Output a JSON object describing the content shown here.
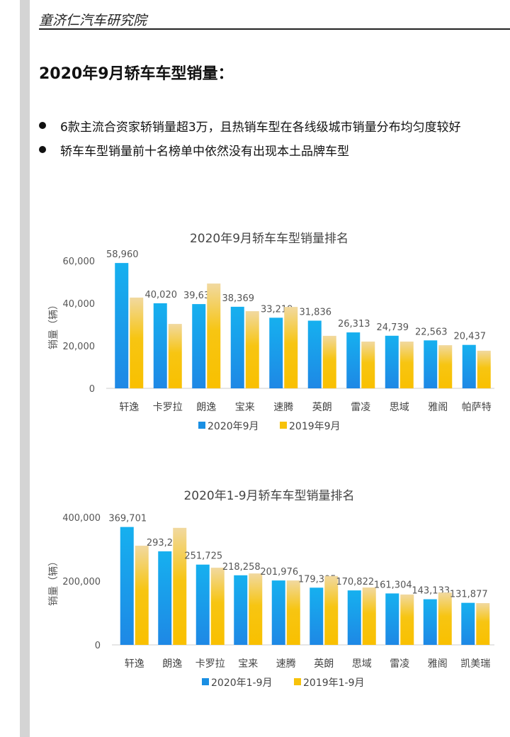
{
  "header": {
    "org": "童济仁汽车研究院"
  },
  "page_title": "2020年9月轿车车型销量：",
  "bullets": [
    "6款主流合资家轿销量超3万，且热销车型在各线级城市销量分布均匀度较好",
    "轿车车型销量前十名榜单中依然没有出现本土品牌车型"
  ],
  "colors": {
    "blue": "#1a8fe3",
    "yellow": "#f7c20a"
  },
  "chart_data": [
    {
      "type": "bar",
      "title": "2020年9月轿车车型销量排名",
      "ylabel": "销量（辆）",
      "ylim": [
        0,
        60000
      ],
      "yticks": [
        "0",
        "20,000",
        "40,000",
        "60,000"
      ],
      "categories": [
        "轩逸",
        "卡罗拉",
        "朗逸",
        "宝来",
        "速腾",
        "英朗",
        "雷凌",
        "思域",
        "雅阁",
        "帕萨特"
      ],
      "series": [
        {
          "name": "2020年9月",
          "values": [
            58960,
            40020,
            39638,
            38369,
            33219,
            31836,
            26313,
            24739,
            22563,
            20437
          ],
          "labels": [
            "58,960",
            "40,020",
            "39,638",
            "38,369",
            "33,219",
            "31,836",
            "26,313",
            "24,739",
            "22,563",
            "20,437"
          ]
        },
        {
          "name": "2019年9月",
          "values": [
            42700,
            30300,
            49300,
            36300,
            38300,
            24700,
            22000,
            22000,
            20300,
            17700
          ]
        }
      ],
      "legend": "bottom"
    },
    {
      "type": "bar",
      "title": "2020年1-9月轿车车型销量排名",
      "ylabel": "销量（辆）",
      "ylim": [
        0,
        400000
      ],
      "yticks": [
        "0",
        "200,000",
        "400,000"
      ],
      "categories": [
        "轩逸",
        "朗逸",
        "卡罗拉",
        "宝来",
        "速腾",
        "英朗",
        "思域",
        "雷凌",
        "雅阁",
        "凯美瑞"
      ],
      "series": [
        {
          "name": "2020年1-9月",
          "values": [
            369701,
            293286,
            251725,
            218258,
            201976,
            179395,
            170822,
            161304,
            143133,
            131877
          ],
          "labels": [
            "369,701",
            "293,286",
            "251,725",
            "218,258",
            "201,976",
            "179,395",
            "170,822",
            "161,304",
            "143,133",
            "131,877"
          ]
        },
        {
          "name": "2019年1-9月",
          "values": [
            311000,
            367000,
            242000,
            224000,
            202000,
            216000,
            180000,
            158000,
            164000,
            131000
          ]
        }
      ],
      "legend": "bottom"
    }
  ]
}
